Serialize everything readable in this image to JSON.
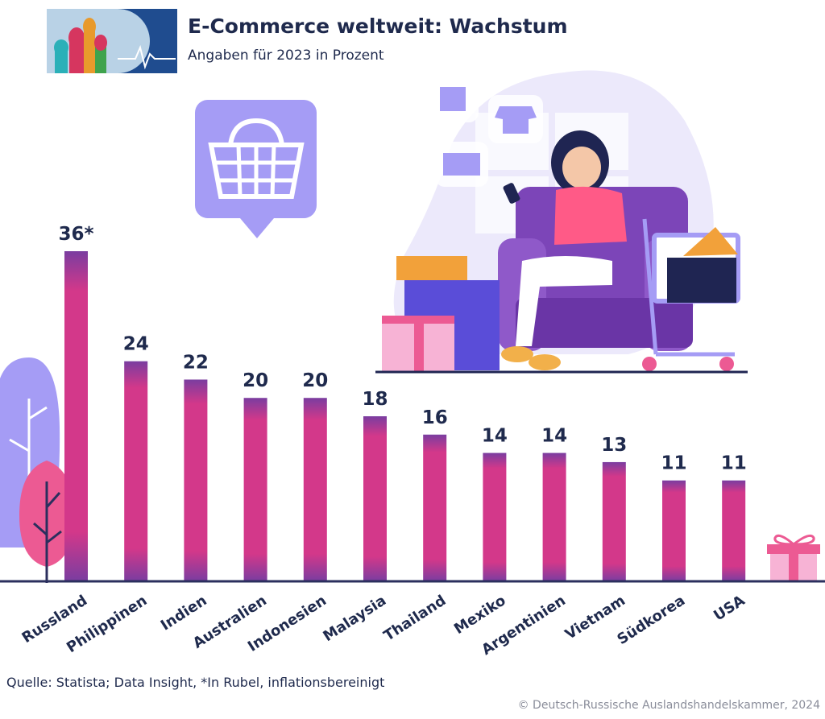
{
  "header": {
    "title": "E-Commerce weltweit: Wachstum",
    "subtitle": "Angaben für 2023 in Prozent"
  },
  "footer": {
    "source": "Quelle: Statista; Data Insight, *In Rubel, inflationsbereinigt",
    "copyright": "© Deutsch-Russische Auslandshandelskammer, 2024"
  },
  "colors": {
    "bar_top": "#7a3da0",
    "bar_mid": "#d3388a",
    "baseline": "#2b2f5e",
    "text": "#1f2a4d",
    "accent_lavender": "#a59cf5"
  },
  "icons": [
    "shopping-basket-icon",
    "woman-shopping-on-phone-illustration",
    "gift-box-icon",
    "tree-icon",
    "logo-icon"
  ],
  "chart_data": {
    "type": "bar",
    "title": "E-Commerce weltweit: Wachstum",
    "subtitle": "Angaben für 2023 in Prozent",
    "categories": [
      "Russland",
      "Philippinen",
      "Indien",
      "Australien",
      "Indonesien",
      "Malaysia",
      "Thailand",
      "Mexiko",
      "Argentinien",
      "Vietnam",
      "Südkorea",
      "USA"
    ],
    "values": [
      36,
      24,
      22,
      20,
      20,
      18,
      16,
      14,
      14,
      13,
      11,
      11
    ],
    "value_labels": [
      "36*",
      "24",
      "22",
      "20",
      "20",
      "18",
      "16",
      "14",
      "14",
      "13",
      "11",
      "11"
    ],
    "ylim": [
      0,
      36
    ],
    "grid": false,
    "legend": "none",
    "xlabel": "",
    "ylabel": ""
  }
}
